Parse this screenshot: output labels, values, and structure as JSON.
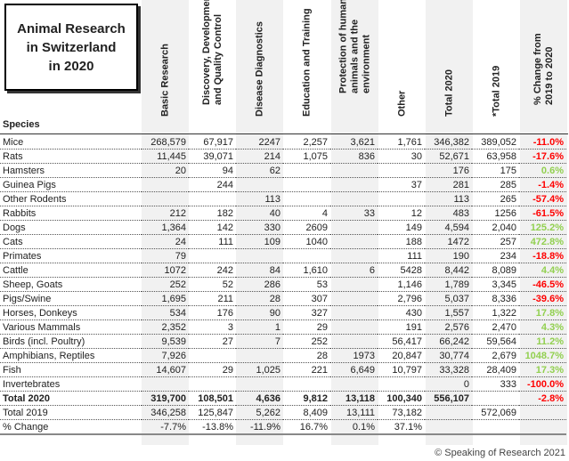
{
  "title": "Animal Research\nin Switzerland\nin 2020",
  "species_header": "Species",
  "columns": [
    "Basic Research",
    "Discovery, Development\nand Quality Control",
    "Disease Diagnostics",
    "Education and Training",
    "Protection of humans,\nanimals and the\nenvironment",
    "Other",
    "Total 2020",
    "*Total 2019",
    "% Change from\n2019 to 2020"
  ],
  "colors": {
    "negative": "#ff0000",
    "positive": "#92d050",
    "shade": "#f1f1f1"
  },
  "rows": [
    {
      "species": "Mice",
      "values": [
        "268,579",
        "67,917",
        "2247",
        "2,257",
        "3,621",
        "1,761",
        "346,382",
        "389,052",
        "-11.0%"
      ]
    },
    {
      "species": "Rats",
      "values": [
        "11,445",
        "39,071",
        "214",
        "1,075",
        "836",
        "30",
        "52,671",
        "63,958",
        "-17.6%"
      ]
    },
    {
      "species": "Hamsters",
      "values": [
        "20",
        "94",
        "62",
        "",
        "",
        "",
        "176",
        "175",
        "0.6%"
      ]
    },
    {
      "species": "Guinea Pigs",
      "values": [
        "",
        "244",
        "",
        "",
        "",
        "37",
        "281",
        "285",
        "-1.4%"
      ]
    },
    {
      "species": "Other Rodents",
      "values": [
        "",
        "",
        "113",
        "",
        "",
        "",
        "113",
        "265",
        "-57.4%"
      ]
    },
    {
      "species": "Rabbits",
      "values": [
        "212",
        "182",
        "40",
        "4",
        "33",
        "12",
        "483",
        "1256",
        "-61.5%"
      ]
    },
    {
      "species": "Dogs",
      "values": [
        "1,364",
        "142",
        "330",
        "2609",
        "",
        "149",
        "4,594",
        "2,040",
        "125.2%"
      ]
    },
    {
      "species": "Cats",
      "values": [
        "24",
        "111",
        "109",
        "1040",
        "",
        "188",
        "1472",
        "257",
        "472.8%"
      ]
    },
    {
      "species": "Primates",
      "values": [
        "79",
        "",
        "",
        "",
        "",
        "111",
        "190",
        "234",
        "-18.8%"
      ]
    },
    {
      "species": "Cattle",
      "values": [
        "1072",
        "242",
        "84",
        "1,610",
        "6",
        "5428",
        "8,442",
        "8,089",
        "4.4%"
      ]
    },
    {
      "species": "Sheep, Goats",
      "values": [
        "252",
        "52",
        "286",
        "53",
        "",
        "1,146",
        "1,789",
        "3,345",
        "-46.5%"
      ]
    },
    {
      "species": "Pigs/Swine",
      "values": [
        "1,695",
        "211",
        "28",
        "307",
        "",
        "2,796",
        "5,037",
        "8,336",
        "-39.6%"
      ]
    },
    {
      "species": "Horses, Donkeys",
      "values": [
        "534",
        "176",
        "90",
        "327",
        "",
        "430",
        "1,557",
        "1,322",
        "17.8%"
      ]
    },
    {
      "species": "Various Mammals",
      "values": [
        "2,352",
        "3",
        "1",
        "29",
        "",
        "191",
        "2,576",
        "2,470",
        "4.3%"
      ]
    },
    {
      "species": "Birds (incl. Poultry)",
      "values": [
        "9,539",
        "27",
        "7",
        "252",
        "",
        "56,417",
        "66,242",
        "59,564",
        "11.2%"
      ]
    },
    {
      "species": "Amphibians, Reptiles",
      "values": [
        "7,926",
        "",
        "",
        "28",
        "1973",
        "20,847",
        "30,774",
        "2,679",
        "1048.7%"
      ]
    },
    {
      "species": "Fish",
      "values": [
        "14,607",
        "29",
        "1,025",
        "221",
        "6,649",
        "10,797",
        "33,328",
        "28,409",
        "17.3%"
      ]
    },
    {
      "species": "Invertebrates",
      "values": [
        "",
        "",
        "",
        "",
        "",
        "",
        "0",
        "333",
        "-100.0%"
      ]
    },
    {
      "species": "Total 2020",
      "bold": true,
      "values": [
        "319,700",
        "108,501",
        "4,636",
        "9,812",
        "13,118",
        "100,340",
        "556,107",
        "",
        "-2.8%"
      ]
    },
    {
      "species": "Total 2019",
      "values": [
        "346,258",
        "125,847",
        "5,262",
        "8,409",
        "13,111",
        "73,182",
        "",
        "572,069",
        ""
      ]
    },
    {
      "species": "% Change",
      "values": [
        "-7.7%",
        "-13.8%",
        "-11.9%",
        "16.7%",
        "0.1%",
        "37.1%",
        "",
        "",
        ""
      ]
    }
  ],
  "footer": "© Speaking of Research 2021"
}
